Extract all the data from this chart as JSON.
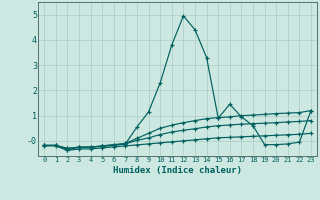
{
  "title": "",
  "xlabel": "Humidex (Indice chaleur)",
  "bg_color": "#cce8e0",
  "line_color": "#006060",
  "grid_color": "#aaccc4",
  "xlim": [
    -0.5,
    23.5
  ],
  "ylim": [
    -0.6,
    5.5
  ],
  "xticks": [
    0,
    1,
    2,
    3,
    4,
    5,
    6,
    7,
    8,
    9,
    10,
    11,
    12,
    13,
    14,
    15,
    16,
    17,
    18,
    19,
    20,
    21,
    22,
    23
  ],
  "yticks": [
    0,
    1,
    2,
    3,
    4,
    5
  ],
  "ytick_labels": [
    "-0",
    "1",
    "2",
    "3",
    "4",
    "5"
  ],
  "series": [
    {
      "x": [
        0,
        1,
        2,
        3,
        4,
        5,
        6,
        7,
        8,
        9,
        10,
        11,
        12,
        13,
        14,
        15,
        16,
        17,
        18,
        19,
        20,
        21,
        22,
        23
      ],
      "y": [
        -0.18,
        -0.18,
        -0.35,
        -0.25,
        -0.25,
        -0.22,
        -0.18,
        -0.12,
        0.55,
        1.15,
        2.3,
        3.8,
        4.95,
        4.4,
        3.3,
        0.9,
        1.45,
        0.95,
        0.6,
        -0.15,
        -0.15,
        -0.12,
        -0.05,
        1.2
      ]
    },
    {
      "x": [
        0,
        1,
        2,
        3,
        4,
        5,
        6,
        7,
        8,
        9,
        10,
        11,
        12,
        13,
        14,
        15,
        16,
        17,
        18,
        19,
        20,
        21,
        22,
        23
      ],
      "y": [
        -0.18,
        -0.18,
        -0.3,
        -0.25,
        -0.25,
        -0.2,
        -0.15,
        -0.1,
        0.1,
        0.3,
        0.5,
        0.62,
        0.72,
        0.8,
        0.88,
        0.92,
        0.95,
        1.0,
        1.02,
        1.05,
        1.08,
        1.1,
        1.12,
        1.2
      ]
    },
    {
      "x": [
        0,
        1,
        2,
        3,
        4,
        5,
        6,
        7,
        8,
        9,
        10,
        11,
        12,
        13,
        14,
        15,
        16,
        17,
        18,
        19,
        20,
        21,
        22,
        23
      ],
      "y": [
        -0.18,
        -0.18,
        -0.3,
        -0.25,
        -0.25,
        -0.2,
        -0.16,
        -0.12,
        0.02,
        0.12,
        0.25,
        0.35,
        0.42,
        0.48,
        0.55,
        0.6,
        0.63,
        0.66,
        0.68,
        0.7,
        0.72,
        0.75,
        0.77,
        0.8
      ]
    },
    {
      "x": [
        0,
        1,
        2,
        3,
        4,
        5,
        6,
        7,
        8,
        9,
        10,
        11,
        12,
        13,
        14,
        15,
        16,
        17,
        18,
        19,
        20,
        21,
        22,
        23
      ],
      "y": [
        -0.2,
        -0.2,
        -0.38,
        -0.32,
        -0.32,
        -0.28,
        -0.24,
        -0.2,
        -0.16,
        -0.12,
        -0.08,
        -0.04,
        0.0,
        0.04,
        0.08,
        0.12,
        0.14,
        0.16,
        0.18,
        0.2,
        0.22,
        0.24,
        0.26,
        0.3
      ]
    }
  ]
}
